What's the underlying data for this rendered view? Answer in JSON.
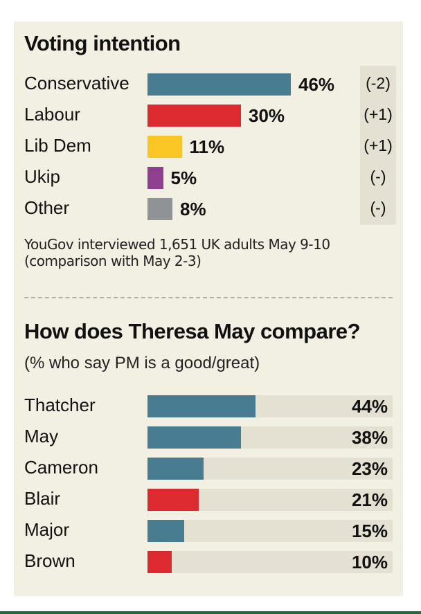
{
  "chart_data": [
    {
      "type": "bar",
      "orientation": "horizontal",
      "title": "Voting intention",
      "categories": [
        "Conservative",
        "Labour",
        "Lib Dem",
        "Ukip",
        "Other"
      ],
      "values": [
        46,
        30,
        11,
        5,
        8
      ],
      "value_labels": [
        "46%",
        "30%",
        "11%",
        "5%",
        "8%"
      ],
      "changes": [
        "(-2)",
        "(+1)",
        "(+1)",
        "(-)",
        "(-)"
      ],
      "colors": [
        "#477c91",
        "#dc2a30",
        "#f9c623",
        "#8e3f8f",
        "#8f9396"
      ],
      "note_lines": [
        "YouGov interviewed 1,651 UK adults May 9-10",
        "(comparison with May 2-3)"
      ]
    },
    {
      "type": "bar",
      "orientation": "horizontal",
      "title": "How does Theresa May compare?",
      "subtitle": "(% who say PM is a good/great)",
      "categories": [
        "Thatcher",
        "May",
        "Cameron",
        "Blair",
        "Major",
        "Brown"
      ],
      "values": [
        44,
        38,
        23,
        21,
        15,
        10
      ],
      "value_labels": [
        "44%",
        "38%",
        "23%",
        "21%",
        "15%",
        "10%"
      ],
      "colors": [
        "#477c91",
        "#477c91",
        "#477c91",
        "#dc2a30",
        "#477c91",
        "#dc2a30"
      ],
      "xlim": [
        0,
        100
      ]
    }
  ]
}
